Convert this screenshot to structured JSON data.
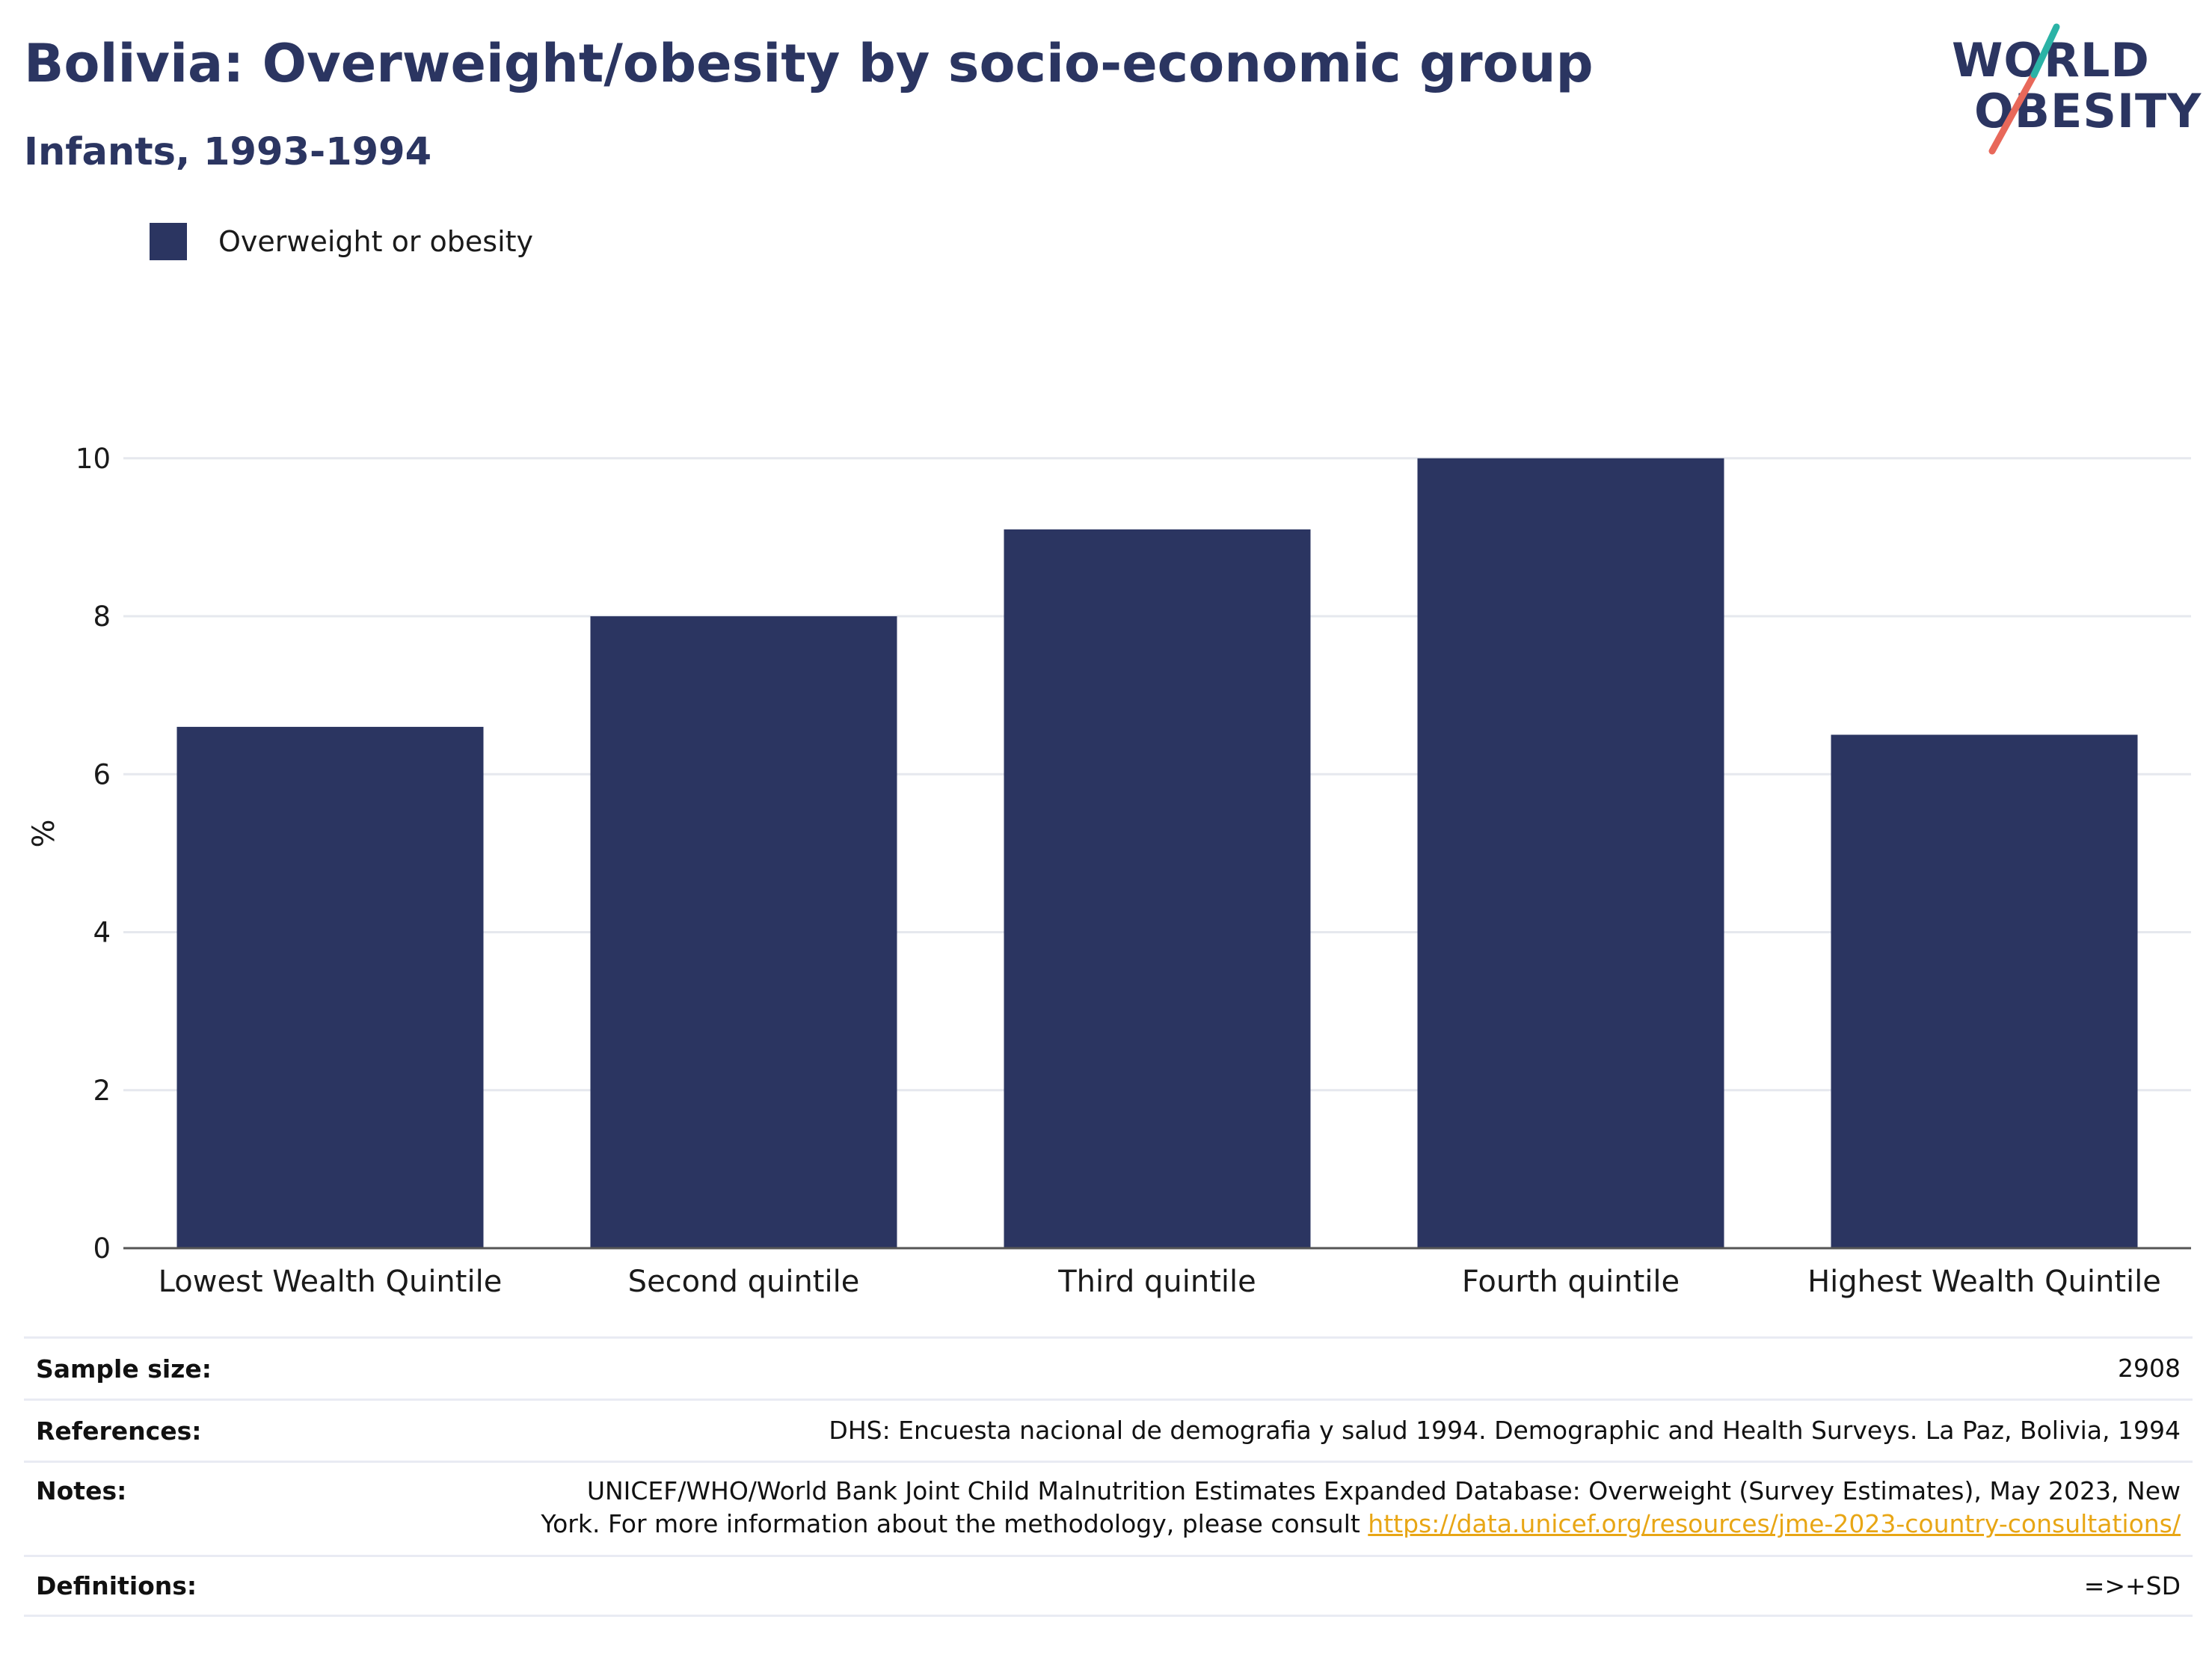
{
  "header": {
    "title": "Bolivia: Overweight/obesity by socio-economic group",
    "subtitle": "Infants, 1993-1994"
  },
  "logo": {
    "line1": "WORLD",
    "line2": "OBESITY",
    "colors": {
      "navy": "#2b3561",
      "teal": "#2bb3a6",
      "coral": "#e8685a"
    }
  },
  "colors": {
    "bar": "#2b3561",
    "grid": "#e6e8ee",
    "axis": "#555555",
    "link": "#e8a615"
  },
  "chart_data": {
    "type": "bar",
    "categories": [
      "Lowest Wealth Quintile",
      "Second quintile",
      "Third quintile",
      "Fourth quintile",
      "Highest Wealth Quintile"
    ],
    "series": [
      {
        "name": "Overweight or obesity",
        "values": [
          6.6,
          8.0,
          9.1,
          10.0,
          6.5
        ]
      }
    ],
    "ylabel": "%",
    "ylim": [
      0,
      10.5
    ],
    "yticks": [
      0,
      2,
      4,
      6,
      8,
      10
    ],
    "grid": true,
    "legend": "top-left"
  },
  "footer": {
    "sample_size": {
      "label": "Sample size:",
      "value": "2908"
    },
    "references": {
      "label": "References:",
      "value": "DHS: Encuesta nacional de demografia y salud 1994. Demographic and Health Surveys. La Paz, Bolivia, 1994"
    },
    "notes": {
      "label": "Notes:",
      "line1": "UNICEF/WHO/World Bank Joint Child Malnutrition Estimates Expanded Database: Overweight (Survey Estimates), May 2023, New",
      "line2": "York. For more information about the methodology, please consult ",
      "link": "https://data.unicef.org/resources/jme-2023-country-consultations/"
    },
    "definitions": {
      "label": "Definitions:",
      "value": "=>+SD"
    }
  }
}
